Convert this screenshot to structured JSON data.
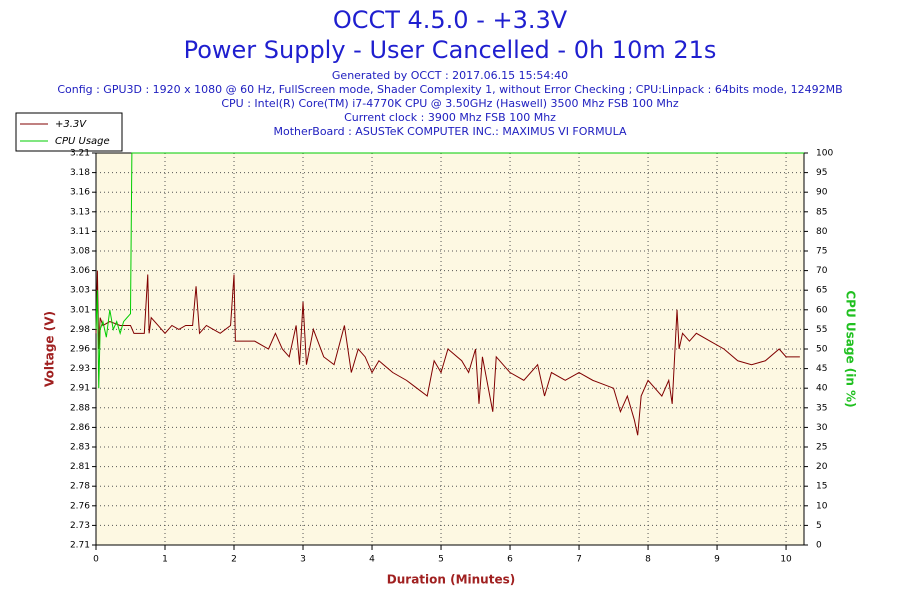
{
  "chart_data": {
    "type": "line",
    "title": "OCCT 4.5.0 - +3.3V",
    "subtitle": "Power Supply - User Cancelled - 0h 10m 21s",
    "info": [
      "Generated by OCCT : 2017.06.15 15:54:40",
      "Config : GPU3D : 1920 x 1080 @ 60 Hz, FullScreen mode, Shader Complexity 1, without Error Checking ; CPU:Linpack : 64bits mode, 12492MB",
      "CPU : Intel(R) Core(TM) i7-4770K CPU @ 3.50GHz (Haswell) 3500 Mhz FSB 100 Mhz",
      "Current clock : 3900 Mhz FSB 100 Mhz",
      "MotherBoard : ASUSTeK COMPUTER INC.: MAXIMUS VI FORMULA"
    ],
    "xlabel": "Duration (Minutes)",
    "ylabel": "Voltage (V)",
    "y2label": "CPU Usage (in %)",
    "xlim": [
      0,
      10.26
    ],
    "xticks": [
      0,
      1,
      2,
      3,
      4,
      5,
      6,
      7,
      8,
      9,
      10
    ],
    "ylim": [
      2.71,
      3.21
    ],
    "yticks": [
      2.71,
      {
        "value": 2.735,
        "label": "2.73"
      },
      2.76,
      {
        "value": 2.785,
        "label": "2.78"
      },
      2.81,
      {
        "value": 2.835,
        "label": "2.83"
      },
      2.86,
      {
        "value": 2.885,
        "label": "2.88"
      },
      2.91,
      {
        "value": 2.935,
        "label": "2.93"
      },
      2.96,
      {
        "value": 2.985,
        "label": "2.98"
      },
      3.01,
      {
        "value": 3.035,
        "label": "3.03"
      },
      3.06,
      {
        "value": 3.085,
        "label": "3.08"
      },
      3.11,
      {
        "value": 3.135,
        "label": "3.13"
      },
      3.16,
      {
        "value": 3.185,
        "label": "3.18"
      },
      3.21
    ],
    "y2lim": [
      0,
      100
    ],
    "y2ticks": [
      0,
      5,
      10,
      15,
      20,
      25,
      30,
      35,
      40,
      45,
      50,
      55,
      60,
      65,
      70,
      75,
      80,
      85,
      90,
      95,
      100
    ],
    "grid": true,
    "legend": "top-left",
    "series": [
      {
        "name": "+3.3V",
        "color": "#800000",
        "x": [
          0,
          0.02,
          0.04,
          0.06,
          0.1,
          0.2,
          0.35,
          0.5,
          0.55,
          0.7,
          0.75,
          0.77,
          0.8,
          0.9,
          1.0,
          1.1,
          1.2,
          1.3,
          1.4,
          1.45,
          1.5,
          1.6,
          1.7,
          1.8,
          1.95,
          2.0,
          2.02,
          2.3,
          2.5,
          2.6,
          2.7,
          2.8,
          2.9,
          2.95,
          3.0,
          3.05,
          3.15,
          3.3,
          3.45,
          3.6,
          3.7,
          3.8,
          3.9,
          4.0,
          4.1,
          4.3,
          4.5,
          4.65,
          4.8,
          4.9,
          5.0,
          5.1,
          5.3,
          5.4,
          5.5,
          5.55,
          5.6,
          5.75,
          5.8,
          6.0,
          6.2,
          6.4,
          6.5,
          6.6,
          6.8,
          7.0,
          7.2,
          7.5,
          7.6,
          7.7,
          7.8,
          7.85,
          7.9,
          8.0,
          8.2,
          8.3,
          8.35,
          8.42,
          8.45,
          8.5,
          8.6,
          8.7,
          8.9,
          9.1,
          9.3,
          9.5,
          9.7,
          9.9,
          10.0,
          10.2
        ],
        "values": [
          2.98,
          3.06,
          2.96,
          3.0,
          2.99,
          2.995,
          2.99,
          2.99,
          2.98,
          2.98,
          3.055,
          2.98,
          3.0,
          2.99,
          2.98,
          2.99,
          2.985,
          2.99,
          2.99,
          3.04,
          2.98,
          2.99,
          2.985,
          2.98,
          2.99,
          3.055,
          2.97,
          2.97,
          2.96,
          2.98,
          2.96,
          2.95,
          2.99,
          2.94,
          3.02,
          2.94,
          2.985,
          2.95,
          2.94,
          2.99,
          2.93,
          2.96,
          2.95,
          2.93,
          2.945,
          2.93,
          2.92,
          2.91,
          2.9,
          2.945,
          2.93,
          2.96,
          2.945,
          2.93,
          2.96,
          2.89,
          2.95,
          2.88,
          2.95,
          2.93,
          2.92,
          2.94,
          2.9,
          2.93,
          2.92,
          2.93,
          2.92,
          2.91,
          2.88,
          2.9,
          2.87,
          2.85,
          2.9,
          2.92,
          2.9,
          2.92,
          2.89,
          3.01,
          2.96,
          2.98,
          2.97,
          2.98,
          2.97,
          2.96,
          2.945,
          2.94,
          2.945,
          2.96,
          2.95,
          2.95
        ]
      },
      {
        "name": "CPU Usage",
        "color": "#00cc00",
        "axis": "y2",
        "x": [
          0,
          0.02,
          0.04,
          0.06,
          0.1,
          0.15,
          0.2,
          0.25,
          0.3,
          0.35,
          0.4,
          0.45,
          0.5,
          0.52,
          10.26
        ],
        "values": [
          55,
          65,
          40,
          55,
          57,
          53,
          60,
          55,
          57,
          54,
          57,
          58,
          59,
          100,
          100
        ]
      }
    ]
  }
}
